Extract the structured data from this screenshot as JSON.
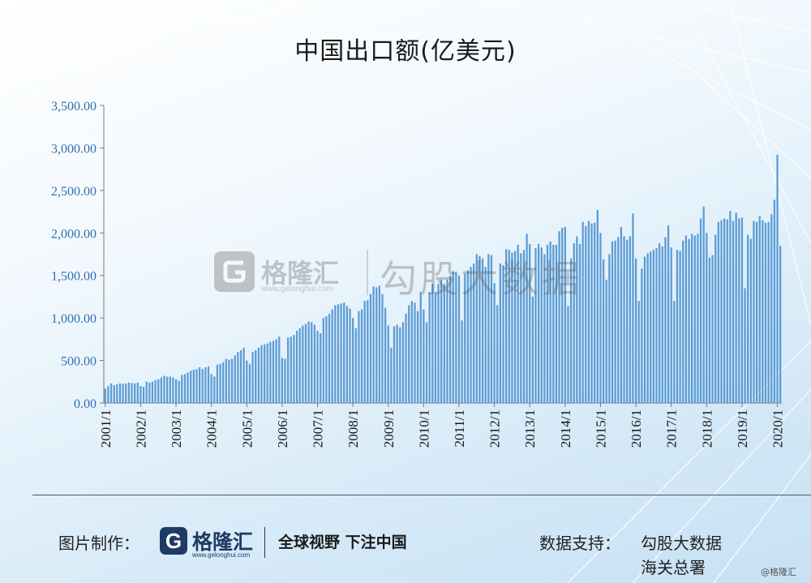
{
  "chart_data": {
    "type": "bar",
    "title": "中国出口额(亿美元)",
    "x_tick_labels": [
      "2001/1",
      "2002/1",
      "2003/1",
      "2004/1",
      "2005/1",
      "2006/1",
      "2007/1",
      "2008/1",
      "2009/1",
      "2010/1",
      "2011/1",
      "2012/1",
      "2013/1",
      "2014/1",
      "2015/1",
      "2016/1",
      "2017/1",
      "2018/1",
      "2019/1",
      "2020/1"
    ],
    "y_tick_labels": [
      "0.00",
      "500.00",
      "1,000.00",
      "1,500.00",
      "2,000.00",
      "2,500.00",
      "3,000.00",
      "3,500.00"
    ],
    "ylim": [
      0,
      3500
    ],
    "x_start": "2001-01",
    "series": [
      {
        "values": [
          170,
          200,
          230,
          210,
          220,
          230,
          225,
          230,
          240,
          235,
          230,
          240,
          200,
          190,
          250,
          240,
          250,
          270,
          280,
          300,
          320,
          310,
          310,
          300,
          280,
          260,
          330,
          340,
          360,
          380,
          390,
          400,
          420,
          400,
          420,
          430,
          340,
          310,
          450,
          460,
          480,
          520,
          510,
          520,
          560,
          600,
          620,
          650,
          500,
          460,
          600,
          620,
          650,
          680,
          690,
          700,
          720,
          730,
          750,
          780,
          530,
          520,
          770,
          780,
          800,
          850,
          880,
          910,
          930,
          960,
          950,
          920,
          850,
          820,
          1000,
          1020,
          1050,
          1100,
          1150,
          1160,
          1170,
          1180,
          1140,
          1110,
          1000,
          880,
          1080,
          1100,
          1200,
          1210,
          1280,
          1370,
          1360,
          1380,
          1280,
          1120,
          910,
          650,
          900,
          920,
          890,
          950,
          1050,
          1150,
          1200,
          1180,
          1080,
          1310,
          1100,
          950,
          1300,
          1400,
          1300,
          1400,
          1450,
          1400,
          1450,
          1500,
          1550,
          1540,
          1500,
          970,
          1520,
          1560,
          1600,
          1640,
          1750,
          1730,
          1700,
          1600,
          1750,
          1740,
          1410,
          1150,
          1640,
          1620,
          1810,
          1800,
          1770,
          1790,
          1860,
          1760,
          1800,
          1990,
          1870,
          1250,
          1820,
          1870,
          1830,
          1750,
          1860,
          1900,
          1860,
          1860,
          2020,
          2060,
          2070,
          1140,
          1700,
          1880,
          1960,
          1870,
          2130,
          2080,
          2140,
          2110,
          2120,
          2270,
          2000,
          1690,
          1450,
          1750,
          1900,
          1910,
          1950,
          2070,
          1960,
          1920,
          1960,
          2230,
          1700,
          1200,
          1580,
          1720,
          1760,
          1780,
          1800,
          1820,
          1880,
          1840,
          1950,
          2090,
          1830,
          1200,
          1800,
          1790,
          1910,
          1970,
          1930,
          1990,
          1970,
          1990,
          2170,
          2310,
          2000,
          1710,
          1740,
          1980,
          2130,
          2150,
          2170,
          2160,
          2260,
          2140,
          2240,
          2170,
          2180,
          1350,
          1980,
          1930,
          2140,
          2130,
          2200,
          2150,
          2120,
          2130,
          2220,
          2390,
          2920,
          1850
        ]
      }
    ]
  },
  "footer": {
    "made_by_label": "图片制作：",
    "logo_letter": "G",
    "logo_name": "格隆汇",
    "logo_url": "www.gelonghui.com",
    "slogan": "全球视野 下注中国",
    "support_label": "数据支持：",
    "support_1": "勾股大数据",
    "support_2": "海关总署"
  },
  "watermark": {
    "name": "格隆汇",
    "url": "www.gelonghui.com",
    "text": "勾股大数据"
  },
  "corner_text": "@格隆汇",
  "colors": {
    "bar": "#5b9bd5",
    "axis": "#7a7a7a",
    "tick_text": "#2f6fb0"
  }
}
